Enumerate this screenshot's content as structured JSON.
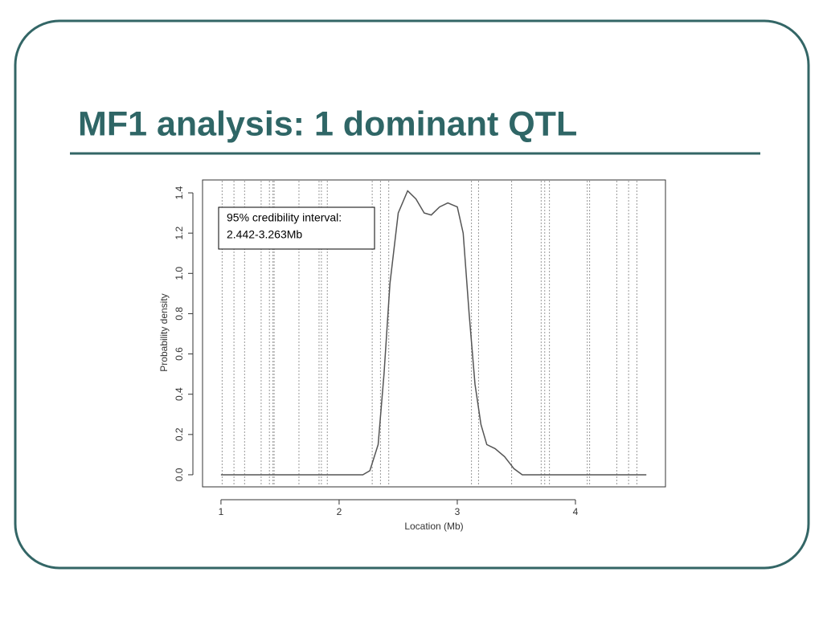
{
  "slide_title": "MF1 analysis: 1 dominant QTL",
  "chart_data": {
    "type": "line",
    "xlabel": "Location (Mb)",
    "ylabel": "Probability density",
    "annotation": [
      "95% credibility interval:",
      "2.442-3.263Mb"
    ],
    "x": [
      1.0,
      2.2,
      2.26,
      2.33,
      2.38,
      2.43,
      2.5,
      2.58,
      2.65,
      2.72,
      2.78,
      2.85,
      2.92,
      3.0,
      3.05,
      3.1,
      3.15,
      3.2,
      3.25,
      3.32,
      3.4,
      3.48,
      3.55,
      4.6
    ],
    "values": [
      0,
      0,
      0.02,
      0.15,
      0.5,
      0.95,
      1.3,
      1.41,
      1.37,
      1.3,
      1.29,
      1.33,
      1.35,
      1.33,
      1.2,
      0.8,
      0.45,
      0.25,
      0.15,
      0.13,
      0.09,
      0.03,
      0,
      0
    ],
    "color": "#555555",
    "markers": [
      1.01,
      1.11,
      1.2,
      1.34,
      1.41,
      1.44,
      1.45,
      1.66,
      1.83,
      1.85,
      1.9,
      2.28,
      2.35,
      2.42,
      3.12,
      3.18,
      3.46,
      3.71,
      3.74,
      3.78,
      4.1,
      4.12,
      4.35,
      4.45,
      4.52
    ],
    "marker_color": "#999999",
    "xlim": [
      0.844,
      4.762
    ],
    "ylim": [
      -0.06,
      1.464
    ],
    "xticks": [
      1,
      2,
      3,
      4
    ],
    "yticks": [
      {
        "value": 0,
        "label": "0.0"
      },
      {
        "value": 0.2,
        "label": "0.2"
      },
      {
        "value": 0.4,
        "label": "0.4"
      },
      {
        "value": 0.6,
        "label": "0.6"
      },
      {
        "value": 0.8,
        "label": "0.8"
      },
      {
        "value": 1.0,
        "label": "1.0"
      },
      {
        "value": 1.2,
        "label": "1.2"
      },
      {
        "value": 1.4,
        "label": "1.4"
      }
    ]
  }
}
